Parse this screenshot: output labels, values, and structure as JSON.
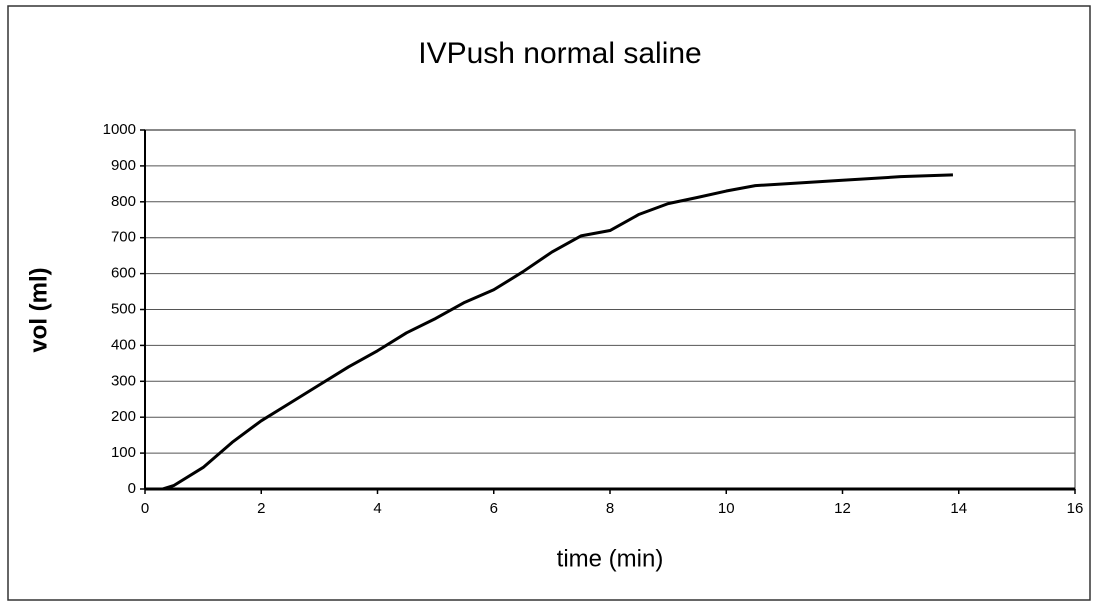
{
  "chart_data": {
    "type": "line",
    "title": "IVPush normal saline",
    "x_label": "time (min)",
    "y_label": "vol (ml)",
    "x": [
      0.3,
      0.5,
      1,
      1.5,
      2,
      2.5,
      3,
      3.5,
      4,
      4.5,
      5,
      5.5,
      6,
      6.5,
      7,
      7.5,
      8,
      8.5,
      9,
      9.5,
      10,
      10.5,
      11,
      12,
      13,
      13.9
    ],
    "values": [
      0,
      10,
      60,
      130,
      190,
      240,
      290,
      340,
      385,
      435,
      475,
      520,
      555,
      605,
      660,
      705,
      720,
      765,
      795,
      812,
      830,
      845,
      850,
      860,
      870,
      875
    ],
    "color": "#000000",
    "xlim": [
      0,
      16
    ],
    "xticks": [
      0,
      2,
      4,
      6,
      8,
      10,
      12,
      14,
      16
    ],
    "ylim": [
      0,
      1000
    ],
    "yticks": [
      0,
      100,
      200,
      300,
      400,
      500,
      600,
      700,
      800,
      900,
      1000
    ],
    "grid": true
  }
}
